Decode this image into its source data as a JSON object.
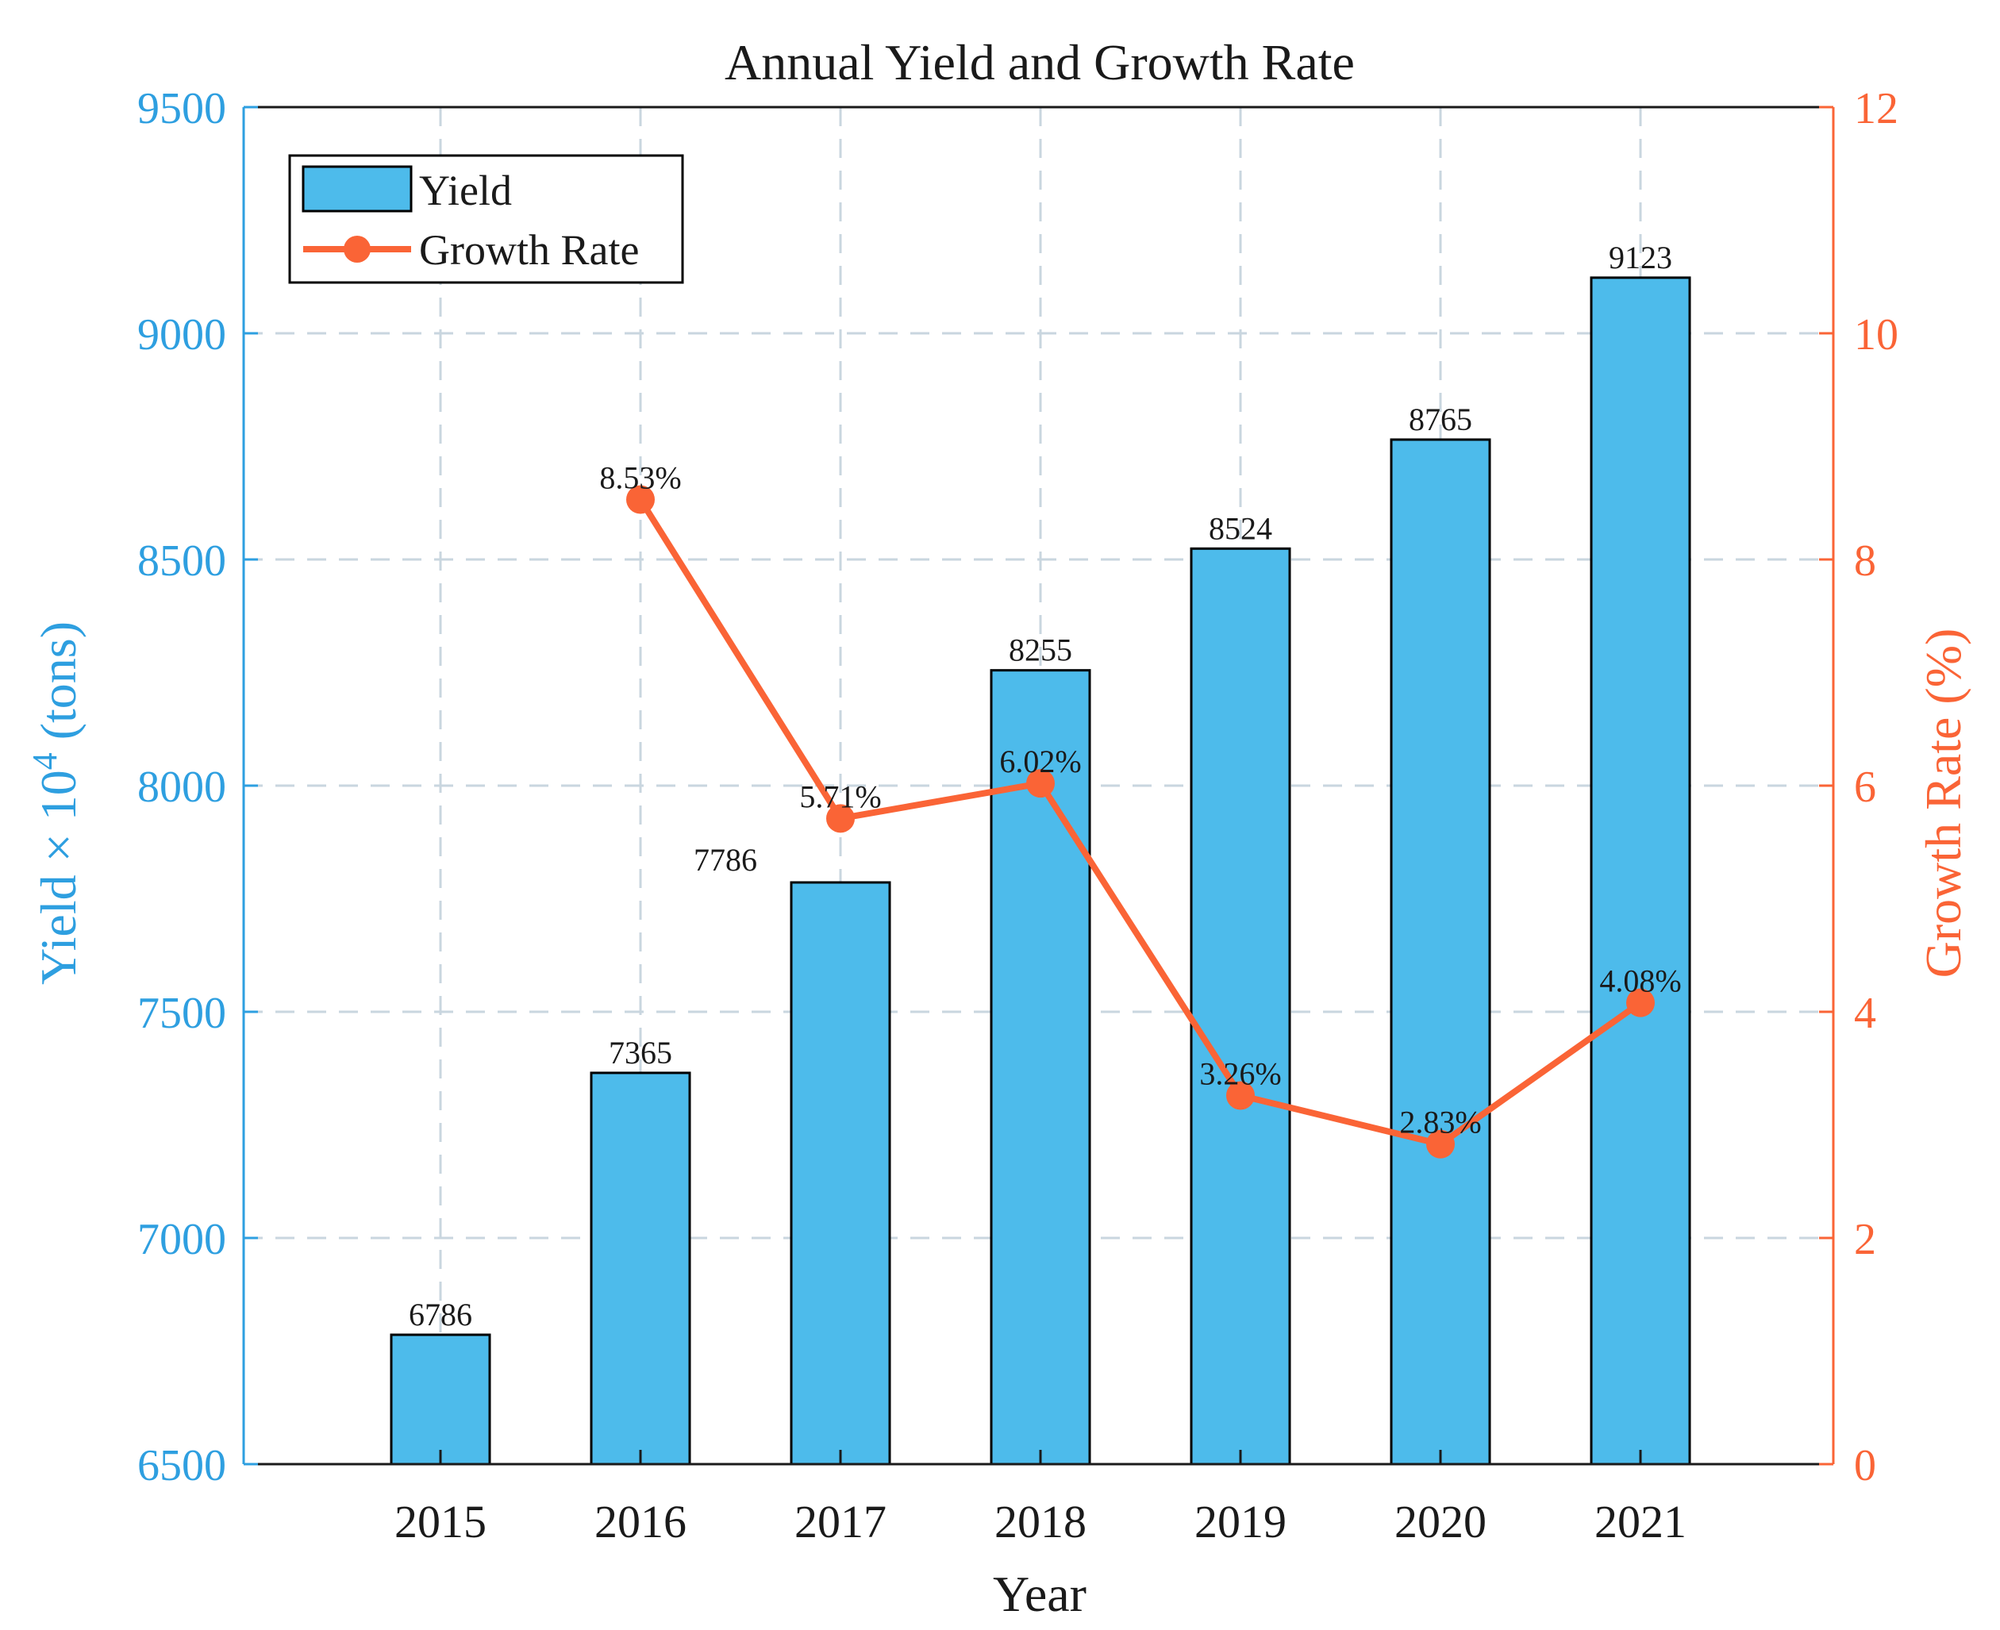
{
  "chart_data": {
    "type": "bar+line",
    "title": "Annual Yield and Growth Rate",
    "xlabel": "Year",
    "ylabel_left": "Yield × 10",
    "ylabel_left_superscript": "4",
    "ylabel_left_unit": " (tons)",
    "ylabel_right": "Growth Rate (%)",
    "categories": [
      "2015",
      "2016",
      "2017",
      "2018",
      "2019",
      "2020",
      "2021"
    ],
    "series": [
      {
        "name": "Yield",
        "type": "bar",
        "axis": "left",
        "values": [
          6786,
          7365,
          7786,
          8255,
          8524,
          8765,
          9123
        ],
        "labels": [
          "6786",
          "7365",
          "7786",
          "8255",
          "8524",
          "8765",
          "9123"
        ]
      },
      {
        "name": "Growth Rate",
        "type": "line",
        "axis": "right",
        "values": [
          null,
          8.53,
          5.71,
          6.02,
          3.26,
          2.83,
          4.08
        ],
        "labels": [
          "",
          "8.53%",
          "5.71%",
          "6.02%",
          "3.26%",
          "2.83%",
          "4.08%"
        ]
      }
    ],
    "ylim_left": [
      6500,
      9500
    ],
    "yticks_left": [
      6500,
      7000,
      7500,
      8000,
      8500,
      9000,
      9500
    ],
    "ylim_right": [
      0,
      12
    ],
    "yticks_right": [
      0,
      2,
      4,
      6,
      8,
      10,
      12
    ],
    "grid": true,
    "legend": {
      "position": "top-left",
      "entries": [
        "Yield",
        "Growth Rate"
      ]
    },
    "colors": {
      "bar": "#4dbbeb",
      "line": "#fa6436",
      "left_axis": "#2e9fe0",
      "right_axis": "#fa6436",
      "grid": "#c9d6df"
    }
  }
}
